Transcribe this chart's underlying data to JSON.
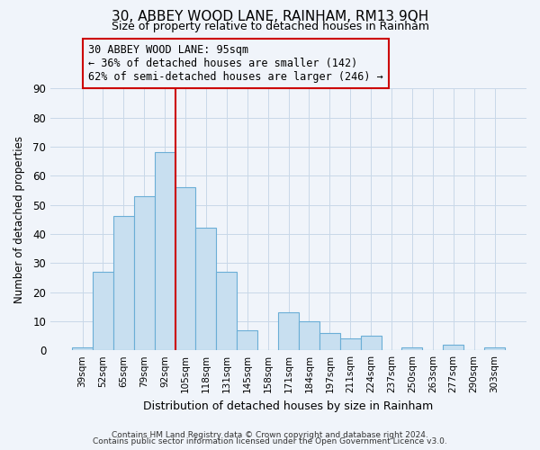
{
  "title": "30, ABBEY WOOD LANE, RAINHAM, RM13 9QH",
  "subtitle": "Size of property relative to detached houses in Rainham",
  "xlabel": "Distribution of detached houses by size in Rainham",
  "ylabel": "Number of detached properties",
  "footnote1": "Contains HM Land Registry data © Crown copyright and database right 2024.",
  "footnote2": "Contains public sector information licensed under the Open Government Licence v3.0.",
  "bar_labels": [
    "39sqm",
    "52sqm",
    "65sqm",
    "79sqm",
    "92sqm",
    "105sqm",
    "118sqm",
    "131sqm",
    "145sqm",
    "158sqm",
    "171sqm",
    "184sqm",
    "197sqm",
    "211sqm",
    "224sqm",
    "237sqm",
    "250sqm",
    "263sqm",
    "277sqm",
    "290sqm",
    "303sqm"
  ],
  "bar_values": [
    1,
    27,
    46,
    53,
    68,
    56,
    42,
    27,
    7,
    0,
    13,
    10,
    6,
    4,
    5,
    0,
    1,
    0,
    2,
    0,
    1
  ],
  "bar_color": "#c8dff0",
  "bar_edge_color": "#6baed6",
  "property_line_index": 5,
  "property_line_color": "#cc0000",
  "ylim": [
    0,
    90
  ],
  "yticks": [
    0,
    10,
    20,
    30,
    40,
    50,
    60,
    70,
    80,
    90
  ],
  "annotation_title": "30 ABBEY WOOD LANE: 95sqm",
  "annotation_line1": "← 36% of detached houses are smaller (142)",
  "annotation_line2": "62% of semi-detached houses are larger (246) →",
  "grid_color": "#c8d8e8",
  "bg_color": "#f0f4fa"
}
